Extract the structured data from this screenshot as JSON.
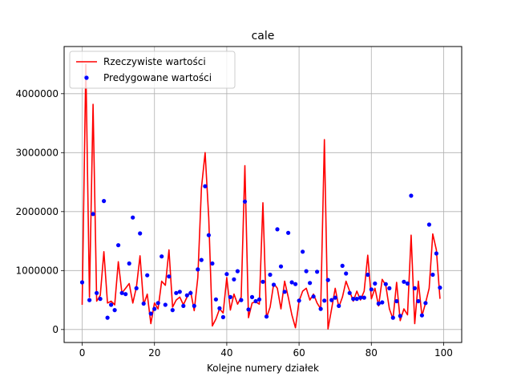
{
  "chart_data": {
    "type": "line",
    "title": "cale",
    "xlabel": "Kolejne numery działek",
    "ylabel": "",
    "xlim": [
      -5,
      105
    ],
    "ylim": [
      -220000,
      4800000
    ],
    "xticks": [
      0,
      20,
      40,
      60,
      80,
      100
    ],
    "yticks": [
      0,
      1000000,
      2000000,
      3000000,
      4000000
    ],
    "ytick_labels": [
      "0",
      "1000000",
      "2000000",
      "3000000",
      "4000000"
    ],
    "grid": true,
    "legend_position": "top-left",
    "series": [
      {
        "name": "Rzeczywiste wartości",
        "kind": "line",
        "color": "#ff0000",
        "x": [
          0,
          1,
          2,
          3,
          4,
          5,
          6,
          7,
          8,
          9,
          10,
          11,
          12,
          13,
          14,
          15,
          16,
          17,
          18,
          19,
          20,
          21,
          22,
          23,
          24,
          25,
          26,
          27,
          28,
          29,
          30,
          31,
          32,
          33,
          34,
          35,
          36,
          37,
          38,
          39,
          40,
          41,
          42,
          43,
          44,
          45,
          46,
          47,
          48,
          49,
          50,
          51,
          52,
          53,
          54,
          55,
          56,
          57,
          58,
          59,
          60,
          61,
          62,
          63,
          64,
          65,
          66,
          67,
          68,
          69,
          70,
          71,
          72,
          73,
          74,
          75,
          76,
          77,
          78,
          79,
          80,
          81,
          82,
          83,
          84,
          85,
          86,
          87,
          88,
          89,
          90,
          91,
          92,
          93,
          94,
          95,
          96,
          97,
          98,
          99
        ],
        "y": [
          420000,
          4500000,
          550000,
          3820000,
          480000,
          580000,
          1320000,
          450000,
          480000,
          420000,
          1150000,
          620000,
          700000,
          780000,
          450000,
          720000,
          1250000,
          420000,
          600000,
          100000,
          450000,
          350000,
          820000,
          750000,
          1350000,
          380000,
          500000,
          550000,
          420000,
          550000,
          650000,
          320000,
          880000,
          2400000,
          3000000,
          1900000,
          60000,
          180000,
          350000,
          280000,
          880000,
          330000,
          600000,
          430000,
          550000,
          2780000,
          200000,
          450000,
          470000,
          430000,
          2150000,
          200000,
          380000,
          780000,
          700000,
          350000,
          820000,
          550000,
          250000,
          30000,
          480000,
          650000,
          700000,
          500000,
          600000,
          450000,
          350000,
          3220000,
          10000,
          350000,
          700000,
          380000,
          550000,
          820000,
          650000,
          480000,
          650000,
          500000,
          650000,
          1260000,
          520000,
          700000,
          400000,
          850000,
          750000,
          350000,
          180000,
          800000,
          150000,
          350000,
          250000,
          1600000,
          100000,
          820000,
          230000,
          450000,
          700000,
          1620000,
          1350000,
          520000
        ]
      },
      {
        "name": "Predygowane wartości",
        "kind": "scatter",
        "color": "#0000ff",
        "x": [
          0,
          1,
          2,
          3,
          4,
          5,
          6,
          7,
          8,
          9,
          10,
          11,
          12,
          13,
          14,
          15,
          16,
          17,
          18,
          19,
          20,
          21,
          22,
          23,
          24,
          25,
          26,
          27,
          28,
          29,
          30,
          31,
          32,
          33,
          34,
          35,
          36,
          37,
          38,
          39,
          40,
          41,
          42,
          43,
          44,
          45,
          46,
          47,
          48,
          49,
          50,
          51,
          52,
          53,
          54,
          55,
          56,
          57,
          58,
          59,
          60,
          61,
          62,
          63,
          64,
          65,
          66,
          67,
          68,
          69,
          70,
          71,
          72,
          73,
          74,
          75,
          76,
          77,
          78,
          79,
          80,
          81,
          82,
          83,
          84,
          85,
          86,
          87,
          88,
          89,
          90,
          91,
          92,
          93,
          94,
          95,
          96,
          97,
          98,
          99
        ],
        "y": [
          800000,
          4280000,
          500000,
          1960000,
          620000,
          520000,
          2180000,
          200000,
          420000,
          330000,
          1430000,
          620000,
          600000,
          1120000,
          1900000,
          700000,
          1630000,
          440000,
          920000,
          270000,
          350000,
          450000,
          1240000,
          420000,
          900000,
          330000,
          620000,
          640000,
          400000,
          580000,
          620000,
          400000,
          1020000,
          1180000,
          2430000,
          1600000,
          1120000,
          510000,
          360000,
          210000,
          940000,
          550000,
          850000,
          990000,
          500000,
          2170000,
          340000,
          550000,
          480000,
          510000,
          810000,
          220000,
          930000,
          760000,
          1700000,
          1070000,
          640000,
          1640000,
          800000,
          770000,
          490000,
          1320000,
          990000,
          790000,
          560000,
          980000,
          350000,
          490000,
          840000,
          500000,
          540000,
          400000,
          1080000,
          950000,
          620000,
          520000,
          520000,
          540000,
          540000,
          930000,
          680000,
          780000,
          440000,
          460000,
          770000,
          700000,
          200000,
          480000,
          230000,
          810000,
          780000,
          2270000,
          700000,
          480000,
          240000,
          450000,
          1780000,
          930000,
          1290000,
          710000
        ]
      }
    ]
  }
}
